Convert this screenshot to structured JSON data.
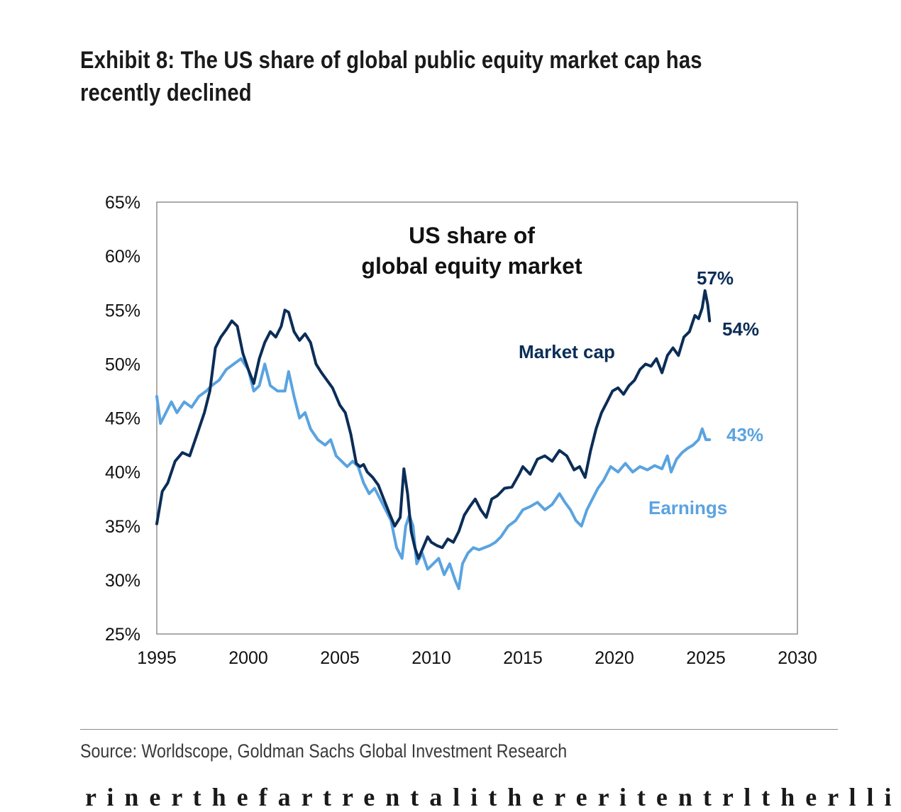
{
  "header": {
    "title": "Exhibit 8: The US share of global public equity market cap has recently declined"
  },
  "footer": {
    "source": "Source: Worldscope, Goldman Sachs Global Investment Research",
    "cutoff_text": "r i   n e r   t h e   f a r   t r e n t   a l   i t h e   r e r   i   t   e n t   r l   t h e   r   l l   i d"
  },
  "colors": {
    "market_cap": "#0b2d57",
    "earnings": "#5aa3e0",
    "axis": "#7f7f7f",
    "text": "#1a1a1a"
  },
  "chart_data": {
    "type": "line",
    "title": "US share of global equity market",
    "title_lines": [
      "US share of",
      "global equity market"
    ],
    "xlabel": "",
    "ylabel": "",
    "xlim": [
      1995,
      2030
    ],
    "ylim": [
      25,
      65
    ],
    "x_ticks": [
      1995,
      2000,
      2005,
      2010,
      2015,
      2020,
      2025,
      2030
    ],
    "y_ticks": [
      25,
      30,
      35,
      40,
      45,
      50,
      55,
      60,
      65
    ],
    "y_tick_labels": [
      "25%",
      "30%",
      "35%",
      "40%",
      "45%",
      "50%",
      "55%",
      "60%",
      "65%"
    ],
    "x_tick_labels": [
      "1995",
      "2000",
      "2005",
      "2010",
      "2015",
      "2020",
      "2025",
      "2030"
    ],
    "grid": false,
    "series": [
      {
        "name": "Market cap",
        "color": "#0b2d57",
        "label": "Market cap",
        "end_labels": [
          "57%",
          "54%"
        ],
        "x": [
          1995.0,
          1995.3,
          1995.6,
          1996.0,
          1996.4,
          1996.8,
          1997.2,
          1997.6,
          1997.9,
          1998.2,
          1998.5,
          1998.8,
          1999.1,
          1999.4,
          1999.7,
          2000.0,
          2000.3,
          2000.6,
          2000.9,
          2001.2,
          2001.5,
          2001.8,
          2002.0,
          2002.2,
          2002.5,
          2002.8,
          2003.1,
          2003.4,
          2003.7,
          2004.0,
          2004.3,
          2004.6,
          2005.0,
          2005.3,
          2005.6,
          2005.9,
          2006.1,
          2006.3,
          2006.5,
          2006.8,
          2007.1,
          2007.4,
          2007.7,
          2008.0,
          2008.3,
          2008.5,
          2008.7,
          2008.9,
          2009.1,
          2009.3,
          2009.5,
          2009.8,
          2010.0,
          2010.3,
          2010.6,
          2010.9,
          2011.2,
          2011.5,
          2011.8,
          2012.1,
          2012.4,
          2012.7,
          2013.0,
          2013.3,
          2013.6,
          2014.0,
          2014.4,
          2014.8,
          2015.0,
          2015.4,
          2015.8,
          2016.2,
          2016.6,
          2017.0,
          2017.4,
          2017.8,
          2018.1,
          2018.4,
          2018.7,
          2019.0,
          2019.3,
          2019.6,
          2019.9,
          2020.2,
          2020.5,
          2020.8,
          2021.1,
          2021.4,
          2021.7,
          2022.0,
          2022.3,
          2022.6,
          2022.9,
          2023.2,
          2023.5,
          2023.8,
          2024.1,
          2024.4,
          2024.6,
          2024.8,
          2024.95,
          2025.1,
          2025.2
        ],
        "values": [
          35.2,
          38.2,
          39.0,
          41.0,
          41.8,
          41.5,
          43.5,
          45.5,
          47.5,
          51.5,
          52.5,
          53.2,
          54.0,
          53.5,
          51.0,
          49.5,
          48.2,
          50.5,
          52.0,
          53.0,
          52.5,
          53.5,
          55.0,
          54.8,
          53.0,
          52.2,
          52.8,
          52.0,
          50.0,
          49.2,
          48.5,
          47.8,
          46.2,
          45.5,
          43.5,
          40.8,
          40.5,
          40.7,
          40.0,
          39.5,
          38.8,
          37.5,
          36.2,
          35.0,
          35.8,
          40.3,
          38.0,
          34.5,
          33.0,
          32.0,
          32.8,
          34.0,
          33.5,
          33.2,
          33.0,
          33.8,
          33.5,
          34.5,
          36.0,
          36.8,
          37.5,
          36.5,
          35.8,
          37.5,
          37.8,
          38.5,
          38.6,
          39.8,
          40.5,
          39.8,
          41.2,
          41.5,
          41.0,
          42.0,
          41.5,
          40.2,
          40.5,
          39.5,
          42.0,
          44.0,
          45.5,
          46.5,
          47.5,
          47.8,
          47.2,
          48.0,
          48.5,
          49.5,
          50.0,
          49.8,
          50.5,
          49.2,
          50.8,
          51.5,
          50.8,
          52.5,
          53.0,
          54.5,
          54.2,
          55.2,
          56.8,
          55.5,
          54.0
        ]
      },
      {
        "name": "Earnings",
        "color": "#5aa3e0",
        "label": "Earnings",
        "end_labels": [
          "43%"
        ],
        "x": [
          1995.0,
          1995.2,
          1995.5,
          1995.8,
          1996.1,
          1996.5,
          1996.9,
          1997.3,
          1997.7,
          1998.0,
          1998.4,
          1998.8,
          1999.2,
          1999.6,
          2000.0,
          2000.3,
          2000.6,
          2000.9,
          2001.2,
          2001.6,
          2002.0,
          2002.2,
          2002.5,
          2002.8,
          2003.1,
          2003.4,
          2003.8,
          2004.2,
          2004.5,
          2004.8,
          2005.1,
          2005.4,
          2005.7,
          2006.0,
          2006.3,
          2006.6,
          2006.9,
          2007.2,
          2007.5,
          2007.8,
          2008.1,
          2008.4,
          2008.6,
          2008.8,
          2009.0,
          2009.2,
          2009.5,
          2009.8,
          2010.1,
          2010.4,
          2010.7,
          2011.0,
          2011.3,
          2011.5,
          2011.7,
          2012.0,
          2012.3,
          2012.6,
          2012.9,
          2013.2,
          2013.5,
          2013.8,
          2014.2,
          2014.6,
          2015.0,
          2015.4,
          2015.8,
          2016.2,
          2016.6,
          2017.0,
          2017.3,
          2017.6,
          2017.9,
          2018.2,
          2018.5,
          2018.8,
          2019.1,
          2019.4,
          2019.8,
          2020.2,
          2020.6,
          2021.0,
          2021.4,
          2021.8,
          2022.2,
          2022.6,
          2022.9,
          2023.1,
          2023.4,
          2023.7,
          2024.0,
          2024.3,
          2024.6,
          2024.8,
          2025.0,
          2025.2
        ],
        "values": [
          47.0,
          44.5,
          45.5,
          46.5,
          45.5,
          46.5,
          46.0,
          47.0,
          47.5,
          48.0,
          48.5,
          49.5,
          50.0,
          50.5,
          49.5,
          47.5,
          48.0,
          50.0,
          48.0,
          47.5,
          47.5,
          49.3,
          47.0,
          45.0,
          45.5,
          44.0,
          43.0,
          42.5,
          43.0,
          41.5,
          41.0,
          40.5,
          41.0,
          40.5,
          39.0,
          38.0,
          38.5,
          37.5,
          36.5,
          35.5,
          33.0,
          32.0,
          35.0,
          36.0,
          35.0,
          31.5,
          32.5,
          31.0,
          31.5,
          32.0,
          30.5,
          31.5,
          30.0,
          29.2,
          31.5,
          32.5,
          33.0,
          32.8,
          33.0,
          33.2,
          33.5,
          34.0,
          35.0,
          35.5,
          36.5,
          36.8,
          37.2,
          36.5,
          37.0,
          38.0,
          37.2,
          36.5,
          35.5,
          35.0,
          36.5,
          37.5,
          38.5,
          39.2,
          40.5,
          40.0,
          40.8,
          40.0,
          40.5,
          40.2,
          40.6,
          40.3,
          41.5,
          40.0,
          41.2,
          41.8,
          42.2,
          42.5,
          43.0,
          44.0,
          43.0,
          43.0
        ]
      }
    ]
  }
}
